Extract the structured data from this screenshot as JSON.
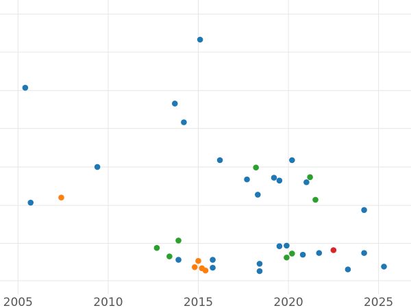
{
  "chart_data": {
    "type": "scatter",
    "title": "",
    "xlabel": "",
    "ylabel": "",
    "xlim": [
      2004.0,
      2026.8
    ],
    "ylim": [
      0.0,
      1.0
    ],
    "x_ticks": [
      2005,
      2010,
      2015,
      2020,
      2025
    ],
    "x_tick_labels": [
      "2005",
      "2010",
      "2015",
      "2020",
      "2025"
    ],
    "y_gridlines": [
      0.0462,
      0.1731,
      0.3019,
      0.4327,
      0.5635,
      0.6923,
      0.8231,
      0.9519
    ],
    "grid": true,
    "legend": "none",
    "series": [
      {
        "color": "#1f77b4",
        "points": [
          {
            "x": 2005.4,
            "y": 0.7019
          },
          {
            "x": 2005.7,
            "y": 0.3115
          },
          {
            "x": 2009.4,
            "y": 0.4327
          },
          {
            "x": 2013.7,
            "y": 0.6481
          },
          {
            "x": 2013.9,
            "y": 0.1173
          },
          {
            "x": 2014.2,
            "y": 0.5846
          },
          {
            "x": 2015.1,
            "y": 0.8654
          },
          {
            "x": 2015.8,
            "y": 0.1173
          },
          {
            "x": 2015.8,
            "y": 0.0904
          },
          {
            "x": 2016.2,
            "y": 0.4558
          },
          {
            "x": 2017.7,
            "y": 0.3904
          },
          {
            "x": 2018.3,
            "y": 0.3385
          },
          {
            "x": 2018.4,
            "y": 0.1038
          },
          {
            "x": 2018.4,
            "y": 0.0788
          },
          {
            "x": 2019.2,
            "y": 0.3962
          },
          {
            "x": 2019.5,
            "y": 0.3865
          },
          {
            "x": 2019.5,
            "y": 0.1635
          },
          {
            "x": 2019.9,
            "y": 0.1654
          },
          {
            "x": 2020.2,
            "y": 0.4558
          },
          {
            "x": 2020.8,
            "y": 0.1346
          },
          {
            "x": 2021.0,
            "y": 0.3808
          },
          {
            "x": 2021.7,
            "y": 0.1404
          },
          {
            "x": 2023.3,
            "y": 0.0846
          },
          {
            "x": 2024.2,
            "y": 0.2865
          },
          {
            "x": 2024.2,
            "y": 0.1404
          },
          {
            "x": 2025.3,
            "y": 0.0942
          }
        ]
      },
      {
        "color": "#ff7f0e",
        "points": [
          {
            "x": 2007.4,
            "y": 0.3288
          },
          {
            "x": 2014.8,
            "y": 0.0923
          },
          {
            "x": 2015.0,
            "y": 0.1135
          },
          {
            "x": 2015.2,
            "y": 0.0885
          },
          {
            "x": 2015.4,
            "y": 0.0808
          }
        ]
      },
      {
        "color": "#2ca02c",
        "points": [
          {
            "x": 2012.7,
            "y": 0.1577
          },
          {
            "x": 2013.4,
            "y": 0.1288
          },
          {
            "x": 2013.9,
            "y": 0.1827
          },
          {
            "x": 2018.2,
            "y": 0.4308
          },
          {
            "x": 2019.9,
            "y": 0.125
          },
          {
            "x": 2020.2,
            "y": 0.1385
          },
          {
            "x": 2021.2,
            "y": 0.3981
          },
          {
            "x": 2021.5,
            "y": 0.3212
          }
        ]
      },
      {
        "color": "#d62728",
        "points": [
          {
            "x": 2022.5,
            "y": 0.15
          }
        ]
      }
    ]
  }
}
